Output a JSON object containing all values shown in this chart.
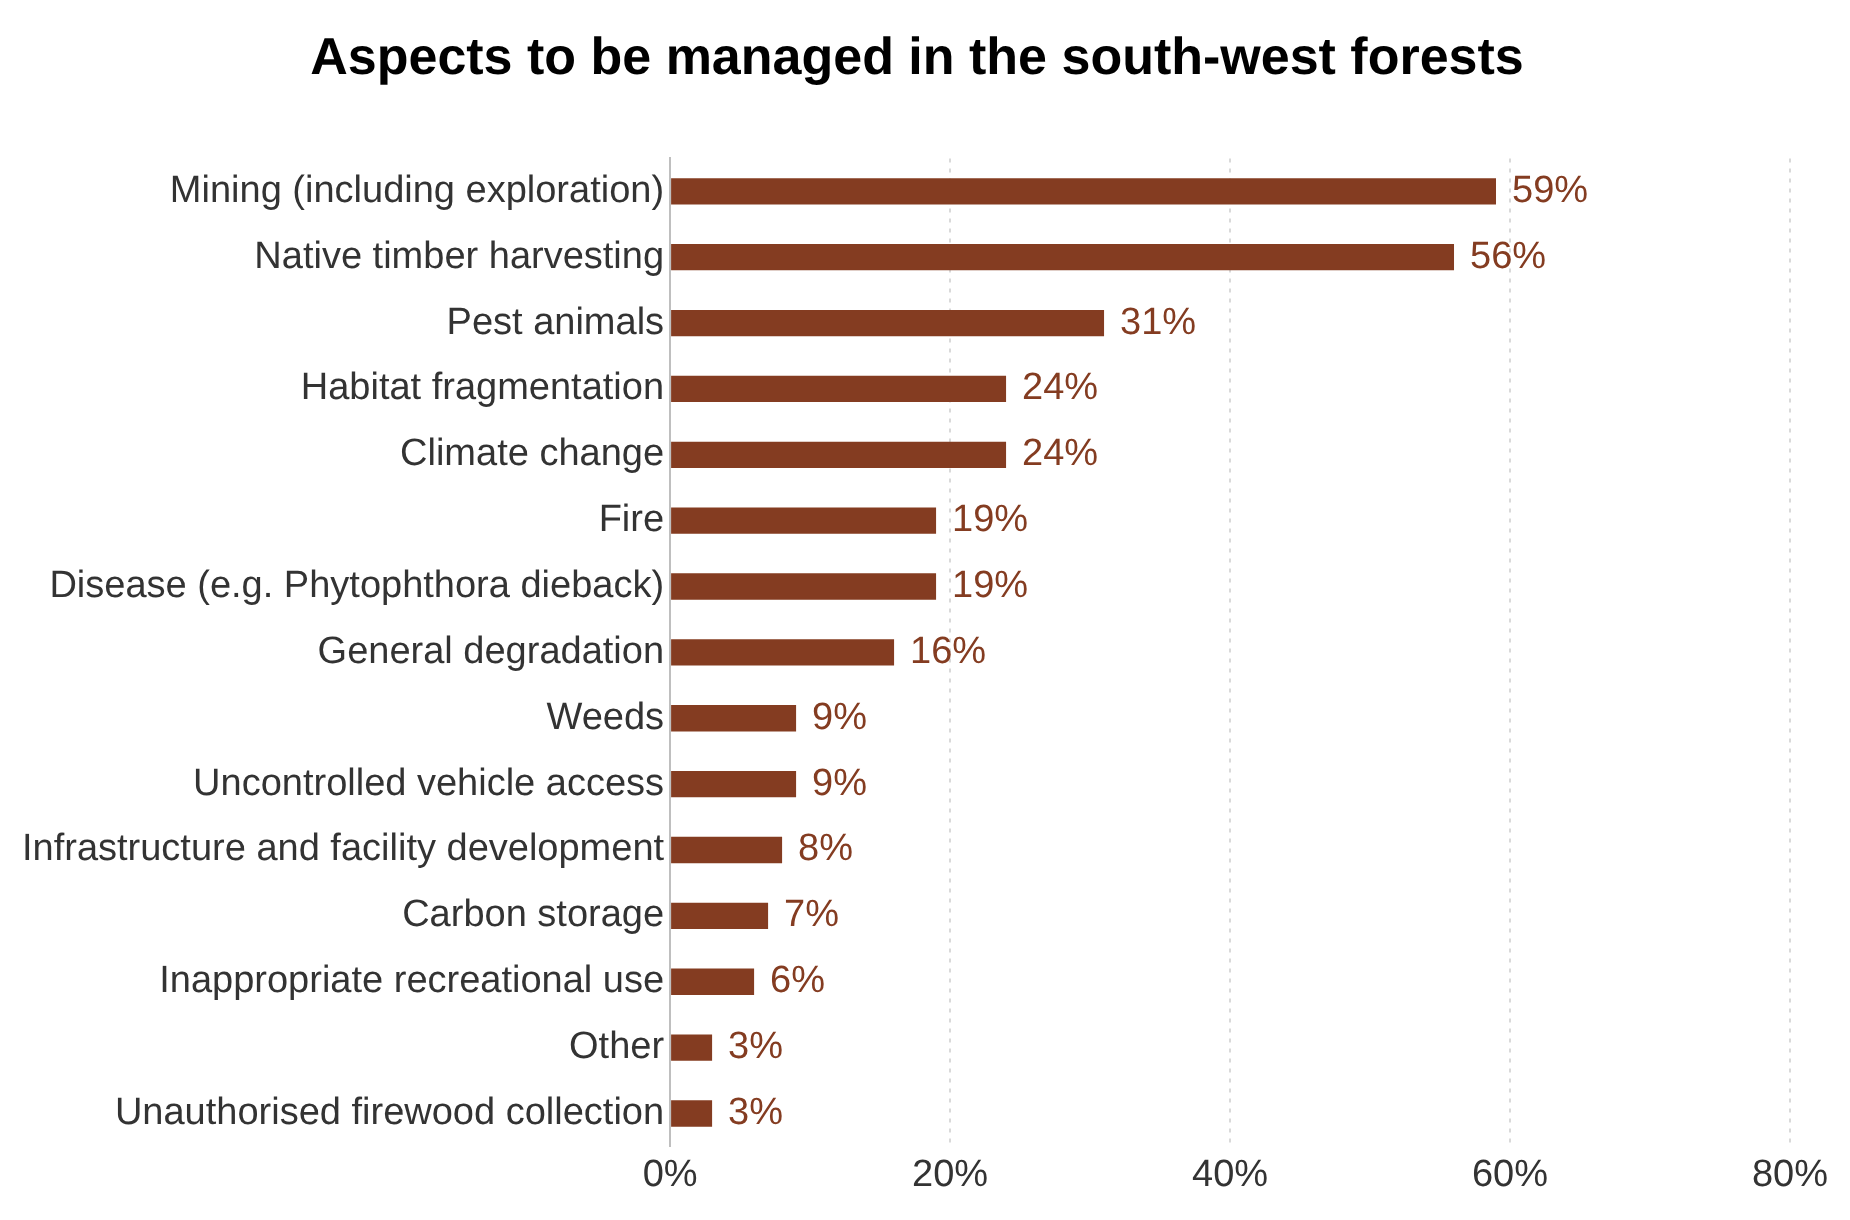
{
  "chart_data": {
    "type": "bar",
    "orientation": "horizontal",
    "title": "Aspects to be managed in the south-west forests",
    "categories": [
      "Mining (including exploration)",
      "Native timber harvesting",
      "Pest animals",
      "Habitat fragmentation",
      "Climate change",
      "Fire",
      "Disease (e.g. Phytophthora dieback)",
      "General degradation",
      "Weeds",
      "Uncontrolled vehicle access",
      "Infrastructure and facility development",
      "Carbon storage",
      "Inappropriate recreational use",
      "Other",
      "Unauthorised firewood collection"
    ],
    "values": [
      59,
      56,
      31,
      24,
      24,
      19,
      19,
      16,
      9,
      9,
      8,
      7,
      6,
      3,
      3
    ],
    "value_labels": [
      "59%",
      "56%",
      "31%",
      "24%",
      "24%",
      "19%",
      "19%",
      "16%",
      "9%",
      "9%",
      "8%",
      "7%",
      "6%",
      "3%",
      "3%"
    ],
    "color": "#843c21",
    "xlim": [
      0,
      80
    ],
    "xticks": [
      {
        "value": 0,
        "label": "0%"
      },
      {
        "value": 20,
        "label": "20%"
      },
      {
        "value": 40,
        "label": "40%"
      },
      {
        "value": 60,
        "label": "60%"
      },
      {
        "value": 80,
        "label": "80%"
      }
    ],
    "grid": "x",
    "legend": false
  }
}
